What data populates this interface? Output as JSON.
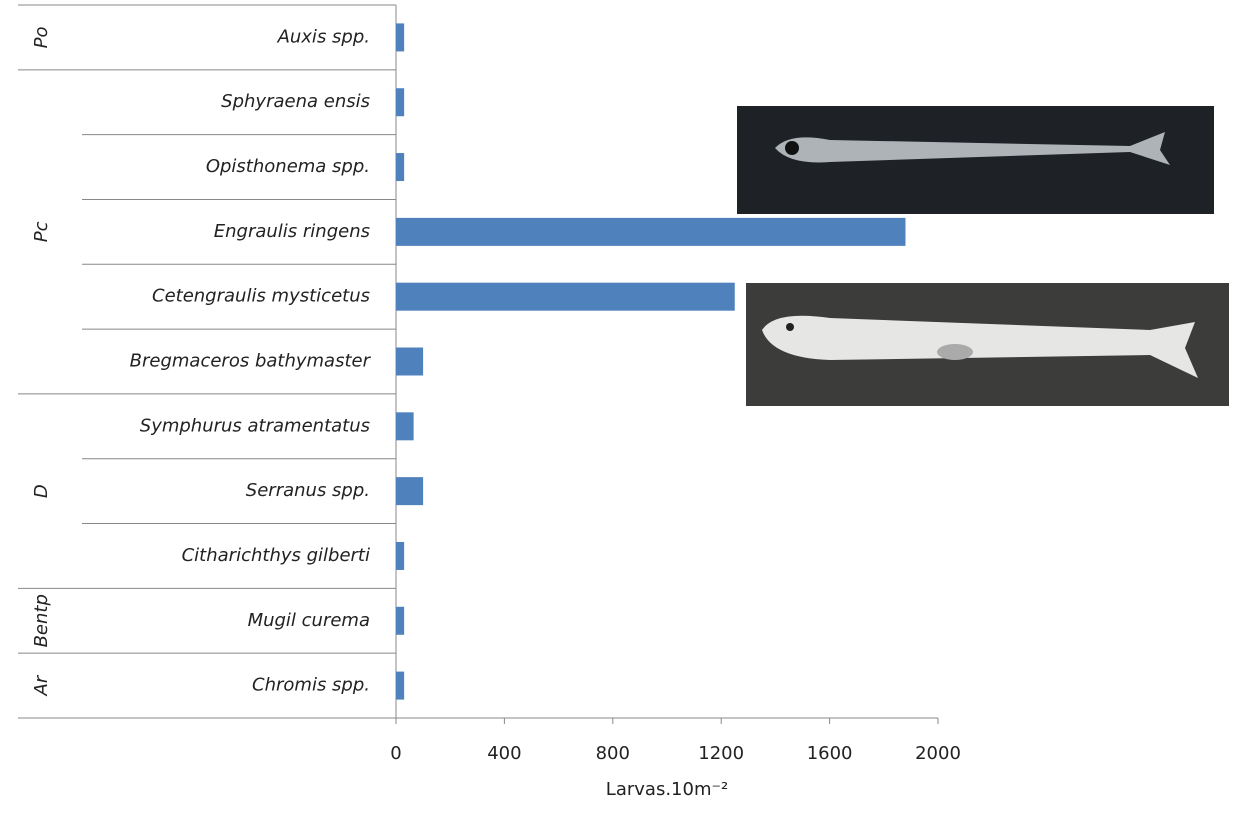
{
  "chart_data": {
    "type": "bar",
    "orientation": "horizontal",
    "categories": [
      "Auxis spp.",
      "Sphyraena ensis",
      "Opisthonema spp.",
      "Engraulis ringens",
      "Cetengraulis mysticetus",
      "Bregmaceros bathymaster",
      "Symphurus atramentatus",
      "Serranus spp.",
      "Citharichthys gilberti",
      "Mugil curema",
      "Chromis spp."
    ],
    "values": [
      30,
      30,
      30,
      1880,
      1250,
      100,
      65,
      100,
      30,
      30,
      30
    ],
    "groups": [
      {
        "name": "Po",
        "size": 1
      },
      {
        "name": "Pc",
        "size": 5
      },
      {
        "name": "D",
        "size": 3
      },
      {
        "name": "Bentp",
        "size": 1
      },
      {
        "name": "Ar",
        "size": 1
      }
    ],
    "color": "#4f81bd",
    "xlim": [
      0,
      2000
    ],
    "xticks": [
      0,
      400,
      800,
      1200,
      1600,
      2000
    ],
    "xlabel": "Larvas.10m⁻²"
  }
}
